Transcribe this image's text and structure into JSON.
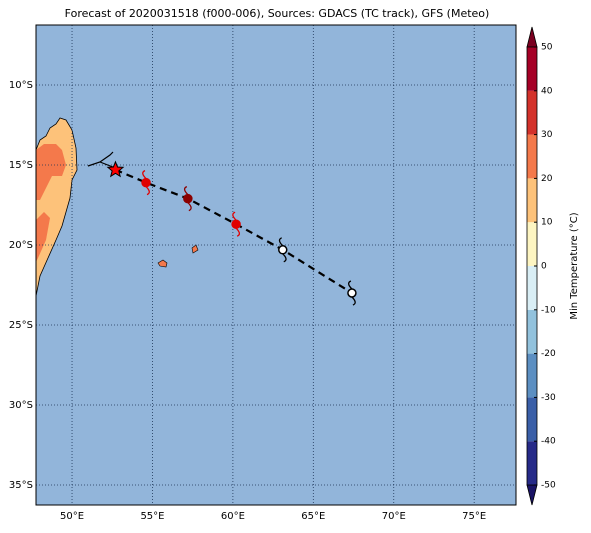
{
  "chart_data": {
    "type": "map",
    "title": "Forecast of 2020031518 (f000-006), Sources: GDACS (TC track), GFS (Meteo)",
    "xlim": [
      47.76,
      77.6
    ],
    "ylim": [
      -36.25,
      -6.25
    ],
    "xticks": [
      {
        "value": 50,
        "label": "50°E"
      },
      {
        "value": 55,
        "label": "55°E"
      },
      {
        "value": 60,
        "label": "60°E"
      },
      {
        "value": 65,
        "label": "65°E"
      },
      {
        "value": 70,
        "label": "70°E"
      },
      {
        "value": 75,
        "label": "75°E"
      }
    ],
    "yticks": [
      {
        "value": -10,
        "label": "10°S"
      },
      {
        "value": -15,
        "label": "15°S"
      },
      {
        "value": -20,
        "label": "20°S"
      },
      {
        "value": -25,
        "label": "25°S"
      },
      {
        "value": -30,
        "label": "30°S"
      },
      {
        "value": -35,
        "label": "35°S"
      }
    ],
    "grid": true,
    "ocean_color": "#92b5da",
    "track": {
      "lon": [
        52.7,
        54.6,
        57.2,
        60.2,
        63.1,
        67.4
      ],
      "lat": [
        -15.3,
        -16.1,
        -17.1,
        -18.7,
        -20.3,
        -23.0
      ],
      "colors": [
        "#ff0000",
        "#e00000",
        "#8b0000",
        "#e00000",
        "#ffffff",
        "#ffffff"
      ]
    },
    "colorbar": {
      "label": "Min Temperature (°C)",
      "levels": [
        -50,
        -40,
        -30,
        -20,
        -10,
        0,
        10,
        20,
        30,
        40,
        50
      ],
      "colors": [
        "#262a88",
        "#3a5fa8",
        "#5c8fc2",
        "#92c2dd",
        "#d9eef5",
        "#fdf5c2",
        "#fdc27a",
        "#f4794b",
        "#d3322b",
        "#a50026"
      ],
      "extend_colors": [
        "#1a1466",
        "#7a0020"
      ]
    }
  }
}
